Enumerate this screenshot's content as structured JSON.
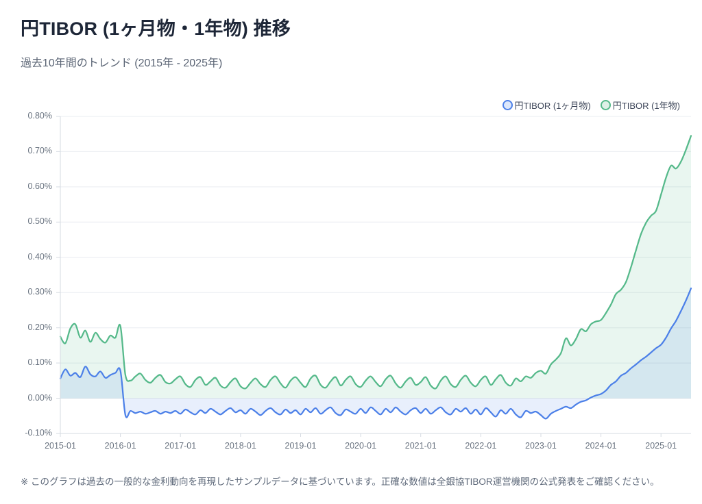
{
  "header": {
    "title": "円TIBOR (1ヶ月物・1年物) 推移",
    "subtitle": "過去10年間のトレンド (2015年 - 2025年)"
  },
  "legend": {
    "items": [
      {
        "label": "円TIBOR (1ヶ月物)",
        "color": "#4c80e8",
        "swatch_fill": "#dce7fb"
      },
      {
        "label": "円TIBOR (1年物)",
        "color": "#55b98a",
        "swatch_fill": "#def0e7"
      }
    ]
  },
  "footnote": "※ このグラフは過去の一般的な金利動向を再現したサンプルデータに基づいています。正確な数値は全銀協TIBOR運営機関の公式発表をご確認ください。",
  "colors": {
    "grid": "#e9ecf0",
    "axis": "#d6dbe2",
    "tick_text": "#68727f",
    "series_1m_line": "#4c80e8",
    "series_1m_fill": "rgba(76,128,232,0.13)",
    "series_1y_line": "#55b98a",
    "series_1y_fill": "rgba(85,185,138,0.13)"
  },
  "chart_data": {
    "type": "area",
    "title": "円TIBOR (1ヶ月物・1年物) 推移",
    "xlabel": "",
    "ylabel": "",
    "x_unit": "month",
    "x_start": "2015-01",
    "x_end": "2025-07",
    "ylim": [
      -0.1,
      0.8
    ],
    "grid": "horizontal",
    "legend_position": "top-right",
    "fill_to_zero": true,
    "y_ticks": [
      {
        "value": 0.8,
        "label": "0.80%"
      },
      {
        "value": 0.7,
        "label": "0.70%"
      },
      {
        "value": 0.6,
        "label": "0.60%"
      },
      {
        "value": 0.5,
        "label": "0.50%"
      },
      {
        "value": 0.4,
        "label": "0.40%"
      },
      {
        "value": 0.3,
        "label": "0.30%"
      },
      {
        "value": 0.2,
        "label": "0.20%"
      },
      {
        "value": 0.1,
        "label": "0.10%"
      },
      {
        "value": 0.0,
        "label": "0.00%"
      },
      {
        "value": -0.1,
        "label": "-0.10%"
      }
    ],
    "x_ticks": [
      {
        "index": 0,
        "label": "2015-01"
      },
      {
        "index": 12,
        "label": "2016-01"
      },
      {
        "index": 24,
        "label": "2017-01"
      },
      {
        "index": 36,
        "label": "2018-01"
      },
      {
        "index": 48,
        "label": "2019-01"
      },
      {
        "index": 60,
        "label": "2020-01"
      },
      {
        "index": 72,
        "label": "2021-01"
      },
      {
        "index": 84,
        "label": "2022-01"
      },
      {
        "index": 96,
        "label": "2023-01"
      },
      {
        "index": 108,
        "label": "2024-01"
      },
      {
        "index": 120,
        "label": "2025-01"
      }
    ],
    "series": [
      {
        "name": "円TIBOR (1ヶ月物)",
        "color": "#4c80e8",
        "fill_color": "rgba(76,128,232,0.13)",
        "values": [
          0.056,
          0.082,
          0.064,
          0.072,
          0.06,
          0.09,
          0.068,
          0.062,
          0.076,
          0.058,
          0.066,
          0.072,
          0.078,
          -0.048,
          -0.036,
          -0.042,
          -0.038,
          -0.044,
          -0.04,
          -0.036,
          -0.044,
          -0.038,
          -0.042,
          -0.036,
          -0.044,
          -0.032,
          -0.04,
          -0.046,
          -0.034,
          -0.042,
          -0.03,
          -0.038,
          -0.046,
          -0.036,
          -0.028,
          -0.04,
          -0.034,
          -0.044,
          -0.03,
          -0.038,
          -0.048,
          -0.036,
          -0.028,
          -0.04,
          -0.046,
          -0.032,
          -0.042,
          -0.034,
          -0.046,
          -0.03,
          -0.04,
          -0.028,
          -0.044,
          -0.034,
          -0.026,
          -0.042,
          -0.048,
          -0.032,
          -0.038,
          -0.044,
          -0.03,
          -0.042,
          -0.026,
          -0.036,
          -0.046,
          -0.03,
          -0.04,
          -0.026,
          -0.038,
          -0.046,
          -0.034,
          -0.028,
          -0.042,
          -0.03,
          -0.044,
          -0.034,
          -0.026,
          -0.04,
          -0.046,
          -0.03,
          -0.038,
          -0.028,
          -0.044,
          -0.032,
          -0.046,
          -0.028,
          -0.04,
          -0.052,
          -0.034,
          -0.044,
          -0.03,
          -0.046,
          -0.054,
          -0.036,
          -0.042,
          -0.038,
          -0.048,
          -0.058,
          -0.044,
          -0.036,
          -0.03,
          -0.024,
          -0.028,
          -0.018,
          -0.01,
          -0.006,
          0.002,
          0.008,
          0.012,
          0.022,
          0.038,
          0.048,
          0.064,
          0.072,
          0.085,
          0.096,
          0.108,
          0.118,
          0.13,
          0.142,
          0.152,
          0.172,
          0.198,
          0.22,
          0.248,
          0.278,
          0.312
        ]
      },
      {
        "name": "円TIBOR (1年物)",
        "color": "#55b98a",
        "fill_color": "rgba(85,185,138,0.13)",
        "values": [
          0.175,
          0.156,
          0.198,
          0.21,
          0.172,
          0.192,
          0.16,
          0.186,
          0.168,
          0.158,
          0.178,
          0.172,
          0.205,
          0.066,
          0.05,
          0.062,
          0.07,
          0.052,
          0.044,
          0.058,
          0.066,
          0.046,
          0.042,
          0.054,
          0.062,
          0.04,
          0.032,
          0.052,
          0.06,
          0.038,
          0.048,
          0.058,
          0.036,
          0.03,
          0.046,
          0.056,
          0.034,
          0.028,
          0.044,
          0.056,
          0.04,
          0.032,
          0.052,
          0.062,
          0.042,
          0.03,
          0.05,
          0.06,
          0.044,
          0.032,
          0.056,
          0.064,
          0.038,
          0.03,
          0.048,
          0.06,
          0.036,
          0.052,
          0.062,
          0.04,
          0.032,
          0.05,
          0.062,
          0.046,
          0.034,
          0.054,
          0.064,
          0.042,
          0.03,
          0.048,
          0.058,
          0.038,
          0.046,
          0.06,
          0.036,
          0.028,
          0.05,
          0.062,
          0.04,
          0.032,
          0.052,
          0.064,
          0.044,
          0.034,
          0.052,
          0.062,
          0.038,
          0.054,
          0.066,
          0.044,
          0.036,
          0.056,
          0.048,
          0.062,
          0.058,
          0.072,
          0.078,
          0.07,
          0.096,
          0.11,
          0.128,
          0.17,
          0.15,
          0.168,
          0.196,
          0.19,
          0.21,
          0.218,
          0.222,
          0.242,
          0.266,
          0.296,
          0.308,
          0.33,
          0.372,
          0.42,
          0.466,
          0.498,
          0.518,
          0.532,
          0.578,
          0.626,
          0.66,
          0.652,
          0.672,
          0.706,
          0.745
        ]
      }
    ]
  }
}
